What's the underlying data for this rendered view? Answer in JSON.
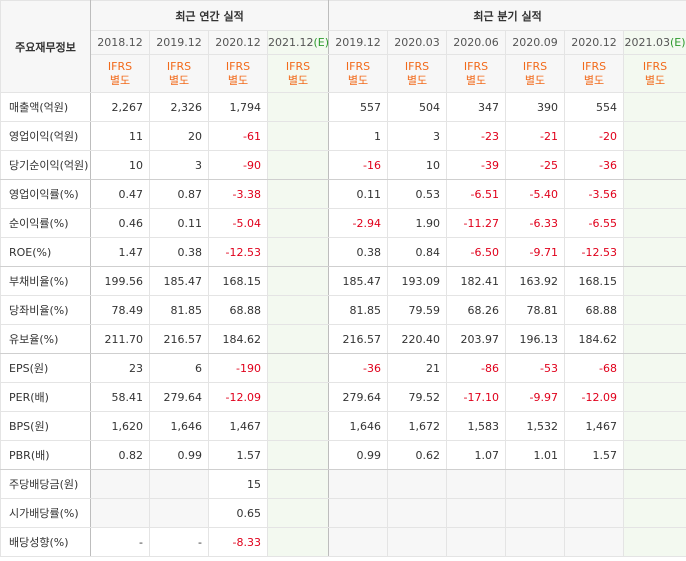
{
  "header": {
    "corner_label": "주요재무정보",
    "annual_title": "최근 연간 실적",
    "quarter_title": "최근 분기 실적",
    "annual_periods": [
      "2018.12",
      "2019.12",
      "2020.12",
      "2021.12"
    ],
    "estimate_suffix": "(E)",
    "quarter_periods": [
      "2019.12",
      "2020.03",
      "2020.06",
      "2020.09",
      "2020.12",
      "2021.03"
    ],
    "ifrs_top": "IFRS",
    "ifrs_bottom": "별도"
  },
  "colors": {
    "negative": "#e0001b",
    "ifrs": "#f26a1b",
    "estimate_bg": "#f3f9f0"
  },
  "rows": [
    {
      "label": "매출액(억원)",
      "annual": [
        "2,267",
        "2,326",
        "1,794",
        ""
      ],
      "quarter": [
        "557",
        "504",
        "347",
        "390",
        "554",
        ""
      ]
    },
    {
      "label": "영업이익(억원)",
      "annual": [
        "11",
        "20",
        "-61",
        ""
      ],
      "quarter": [
        "1",
        "3",
        "-23",
        "-21",
        "-20",
        ""
      ]
    },
    {
      "label": "당기순이익(억원)",
      "annual": [
        "10",
        "3",
        "-90",
        ""
      ],
      "quarter": [
        "-16",
        "10",
        "-39",
        "-25",
        "-36",
        ""
      ]
    },
    {
      "label": "영업이익률(%)",
      "annual": [
        "0.47",
        "0.87",
        "-3.38",
        ""
      ],
      "quarter": [
        "0.11",
        "0.53",
        "-6.51",
        "-5.40",
        "-3.56",
        ""
      ]
    },
    {
      "label": "순이익률(%)",
      "annual": [
        "0.46",
        "0.11",
        "-5.04",
        ""
      ],
      "quarter": [
        "-2.94",
        "1.90",
        "-11.27",
        "-6.33",
        "-6.55",
        ""
      ]
    },
    {
      "label": "ROE(%)",
      "annual": [
        "1.47",
        "0.38",
        "-12.53",
        ""
      ],
      "quarter": [
        "0.38",
        "0.84",
        "-6.50",
        "-9.71",
        "-12.53",
        ""
      ]
    },
    {
      "label": "부채비율(%)",
      "annual": [
        "199.56",
        "185.47",
        "168.15",
        ""
      ],
      "quarter": [
        "185.47",
        "193.09",
        "182.41",
        "163.92",
        "168.15",
        ""
      ]
    },
    {
      "label": "당좌비율(%)",
      "annual": [
        "78.49",
        "81.85",
        "68.88",
        ""
      ],
      "quarter": [
        "81.85",
        "79.59",
        "68.26",
        "78.81",
        "68.88",
        ""
      ]
    },
    {
      "label": "유보율(%)",
      "annual": [
        "211.70",
        "216.57",
        "184.62",
        ""
      ],
      "quarter": [
        "216.57",
        "220.40",
        "203.97",
        "196.13",
        "184.62",
        ""
      ]
    },
    {
      "label": "EPS(원)",
      "annual": [
        "23",
        "6",
        "-190",
        ""
      ],
      "quarter": [
        "-36",
        "21",
        "-86",
        "-53",
        "-68",
        ""
      ]
    },
    {
      "label": "PER(배)",
      "annual": [
        "58.41",
        "279.64",
        "-12.09",
        ""
      ],
      "quarter": [
        "279.64",
        "79.52",
        "-17.10",
        "-9.97",
        "-12.09",
        ""
      ]
    },
    {
      "label": "BPS(원)",
      "annual": [
        "1,620",
        "1,646",
        "1,467",
        ""
      ],
      "quarter": [
        "1,646",
        "1,672",
        "1,583",
        "1,532",
        "1,467",
        ""
      ]
    },
    {
      "label": "PBR(배)",
      "annual": [
        "0.82",
        "0.99",
        "1.57",
        ""
      ],
      "quarter": [
        "0.99",
        "0.62",
        "1.07",
        "1.01",
        "1.57",
        ""
      ]
    },
    {
      "label": "주당배당금(원)",
      "annual": [
        "",
        "",
        "15",
        ""
      ],
      "quarter": [
        "",
        "",
        "",
        "",
        "",
        ""
      ]
    },
    {
      "label": "시가배당률(%)",
      "annual": [
        "",
        "",
        "0.65",
        ""
      ],
      "quarter": [
        "",
        "",
        "",
        "",
        "",
        ""
      ]
    },
    {
      "label": "배당성향(%)",
      "annual": [
        "-",
        "-",
        "-8.33",
        ""
      ],
      "quarter": [
        "",
        "",
        "",
        "",
        "",
        ""
      ]
    }
  ]
}
